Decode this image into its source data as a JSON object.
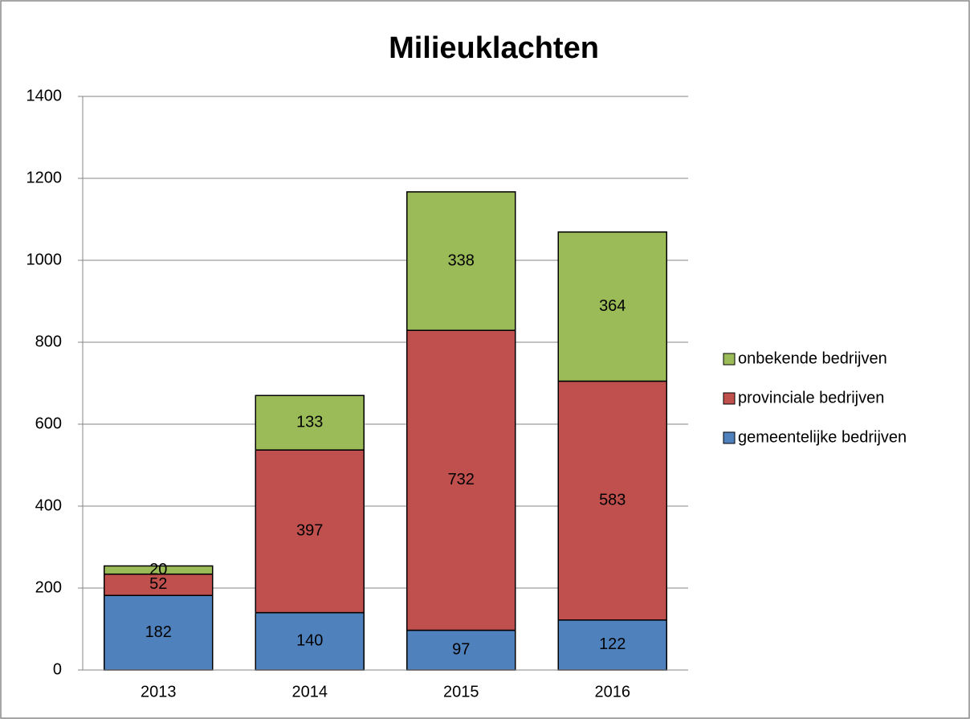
{
  "chart_data": {
    "type": "stacked_bar",
    "title": "Milieuklachten",
    "categories": [
      "2013",
      "2014",
      "2015",
      "2016"
    ],
    "series": [
      {
        "name": "gemeentelijke bedrijven",
        "color": "#4f81bd",
        "values": [
          182,
          140,
          97,
          122
        ]
      },
      {
        "name": "provinciale bedrijven",
        "color": "#c0504d",
        "values": [
          52,
          397,
          732,
          583
        ]
      },
      {
        "name": "onbekende bedrijven",
        "color": "#9bbb59",
        "values": [
          20,
          133,
          338,
          364
        ]
      }
    ],
    "ylim": [
      0,
      1400
    ],
    "yticks": [
      0,
      200,
      400,
      600,
      800,
      1000,
      1200,
      1400
    ],
    "grid": true,
    "legend": "right"
  }
}
